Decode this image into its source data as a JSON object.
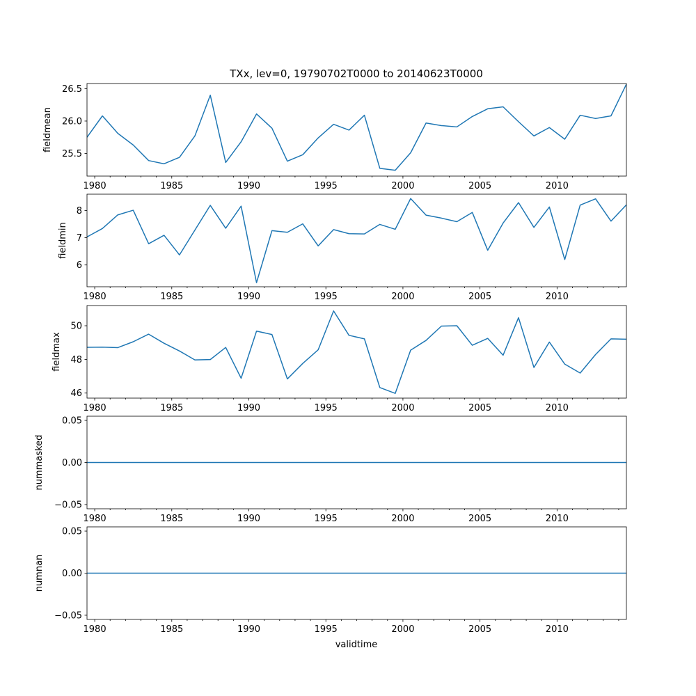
{
  "chart_data": {
    "type": "line",
    "title": "TXx, lev=0, 19790702T0000 to 20140623T0000",
    "xlabel": "validtime",
    "x_tick_labels": [
      "1980",
      "1985",
      "1990",
      "1995",
      "2000",
      "2005",
      "2010"
    ],
    "x_ticks": [
      1980,
      1985,
      1990,
      1995,
      2000,
      2005,
      2010
    ],
    "xlim": [
      1979.5,
      2014.5
    ],
    "line_color": "#1f77b4",
    "subplots": [
      {
        "ylabel": "fieldmean",
        "ylim": [
          25.15,
          26.58
        ],
        "y_ticks": [
          25.5,
          26.0,
          26.5
        ],
        "y_tick_labels": [
          "25.5",
          "26.0",
          "26.5"
        ],
        "x": [
          1979.5,
          1980.5,
          1981.5,
          1982.5,
          1983.5,
          1984.5,
          1985.5,
          1986.5,
          1987.5,
          1988.5,
          1989.5,
          1990.5,
          1991.5,
          1992.5,
          1993.5,
          1994.5,
          1995.5,
          1996.5,
          1997.5,
          1998.5,
          1999.5,
          2000.5,
          2001.5,
          2002.5,
          2003.5,
          2004.5,
          2005.5,
          2006.5,
          2007.5,
          2008.5,
          2009.5,
          2010.5,
          2011.5,
          2012.5,
          2013.5,
          2014.5
        ],
        "values": [
          25.75,
          26.08,
          25.81,
          25.63,
          25.39,
          25.34,
          25.44,
          25.77,
          26.4,
          25.36,
          25.68,
          26.11,
          25.89,
          25.38,
          25.48,
          25.74,
          25.95,
          25.86,
          26.09,
          25.27,
          25.24,
          25.51,
          25.97,
          25.93,
          25.91,
          26.07,
          26.19,
          26.22,
          25.99,
          25.77,
          25.9,
          25.72,
          26.09,
          26.04,
          26.08,
          26.57
        ]
      },
      {
        "ylabel": "fieldmin",
        "ylim": [
          5.2,
          8.6
        ],
        "y_ticks": [
          6,
          7,
          8
        ],
        "y_tick_labels": [
          "6",
          "7",
          "8"
        ],
        "x": [
          1979.5,
          1980.5,
          1981.5,
          1982.5,
          1983.5,
          1984.5,
          1985.5,
          1986.5,
          1987.5,
          1988.5,
          1989.5,
          1990.5,
          1991.5,
          1992.5,
          1993.5,
          1994.5,
          1995.5,
          1996.5,
          1997.5,
          1998.5,
          1999.5,
          2000.5,
          2001.5,
          2002.5,
          2003.5,
          2004.5,
          2005.5,
          2006.5,
          2007.5,
          2008.5,
          2009.5,
          2010.5,
          2011.5,
          2012.5,
          2013.5,
          2014.5
        ],
        "values": [
          7.03,
          7.34,
          7.84,
          8.01,
          6.78,
          7.09,
          6.37,
          7.28,
          8.19,
          7.35,
          8.16,
          5.35,
          7.26,
          7.2,
          7.51,
          6.7,
          7.3,
          7.15,
          7.14,
          7.49,
          7.31,
          8.44,
          7.83,
          7.72,
          7.59,
          7.93,
          6.54,
          7.54,
          8.29,
          7.38,
          8.13,
          6.2,
          8.2,
          8.43,
          7.61,
          8.21
        ]
      },
      {
        "ylabel": "fieldmax",
        "ylim": [
          45.7,
          51.2
        ],
        "y_ticks": [
          46,
          48,
          50
        ],
        "y_tick_labels": [
          "46",
          "48",
          "50"
        ],
        "x": [
          1979.5,
          1980.5,
          1981.5,
          1982.5,
          1983.5,
          1984.5,
          1985.5,
          1986.5,
          1987.5,
          1988.5,
          1989.5,
          1990.5,
          1991.5,
          1992.5,
          1993.5,
          1994.5,
          1995.5,
          1996.5,
          1997.5,
          1998.5,
          1999.5,
          2000.5,
          2001.5,
          2002.5,
          2003.5,
          2004.5,
          2005.5,
          2006.5,
          2007.5,
          2008.5,
          2009.5,
          2010.5,
          2011.5,
          2012.5,
          2013.5,
          2014.5
        ],
        "values": [
          48.72,
          48.73,
          48.7,
          49.05,
          49.5,
          48.96,
          48.5,
          47.97,
          47.99,
          48.71,
          46.88,
          49.68,
          49.48,
          46.84,
          47.76,
          48.57,
          50.88,
          49.43,
          49.22,
          46.33,
          45.98,
          48.55,
          49.13,
          49.98,
          50.0,
          48.84,
          49.25,
          48.25,
          50.48,
          47.52,
          49.03,
          47.72,
          47.19,
          48.29,
          49.22,
          49.2
        ]
      },
      {
        "ylabel": "nummasked",
        "ylim": [
          -0.055,
          0.055
        ],
        "y_ticks": [
          -0.05,
          0.0,
          0.05
        ],
        "y_tick_labels": [
          "−0.05",
          "0.00",
          "0.05"
        ],
        "x": [
          1979.5,
          2014.5
        ],
        "values": [
          0,
          0
        ]
      },
      {
        "ylabel": "numnan",
        "ylim": [
          -0.055,
          0.055
        ],
        "y_ticks": [
          -0.05,
          0.0,
          0.05
        ],
        "y_tick_labels": [
          "−0.05",
          "0.00",
          "0.05"
        ],
        "x": [
          1979.5,
          2014.5
        ],
        "values": [
          0,
          0
        ]
      }
    ]
  }
}
